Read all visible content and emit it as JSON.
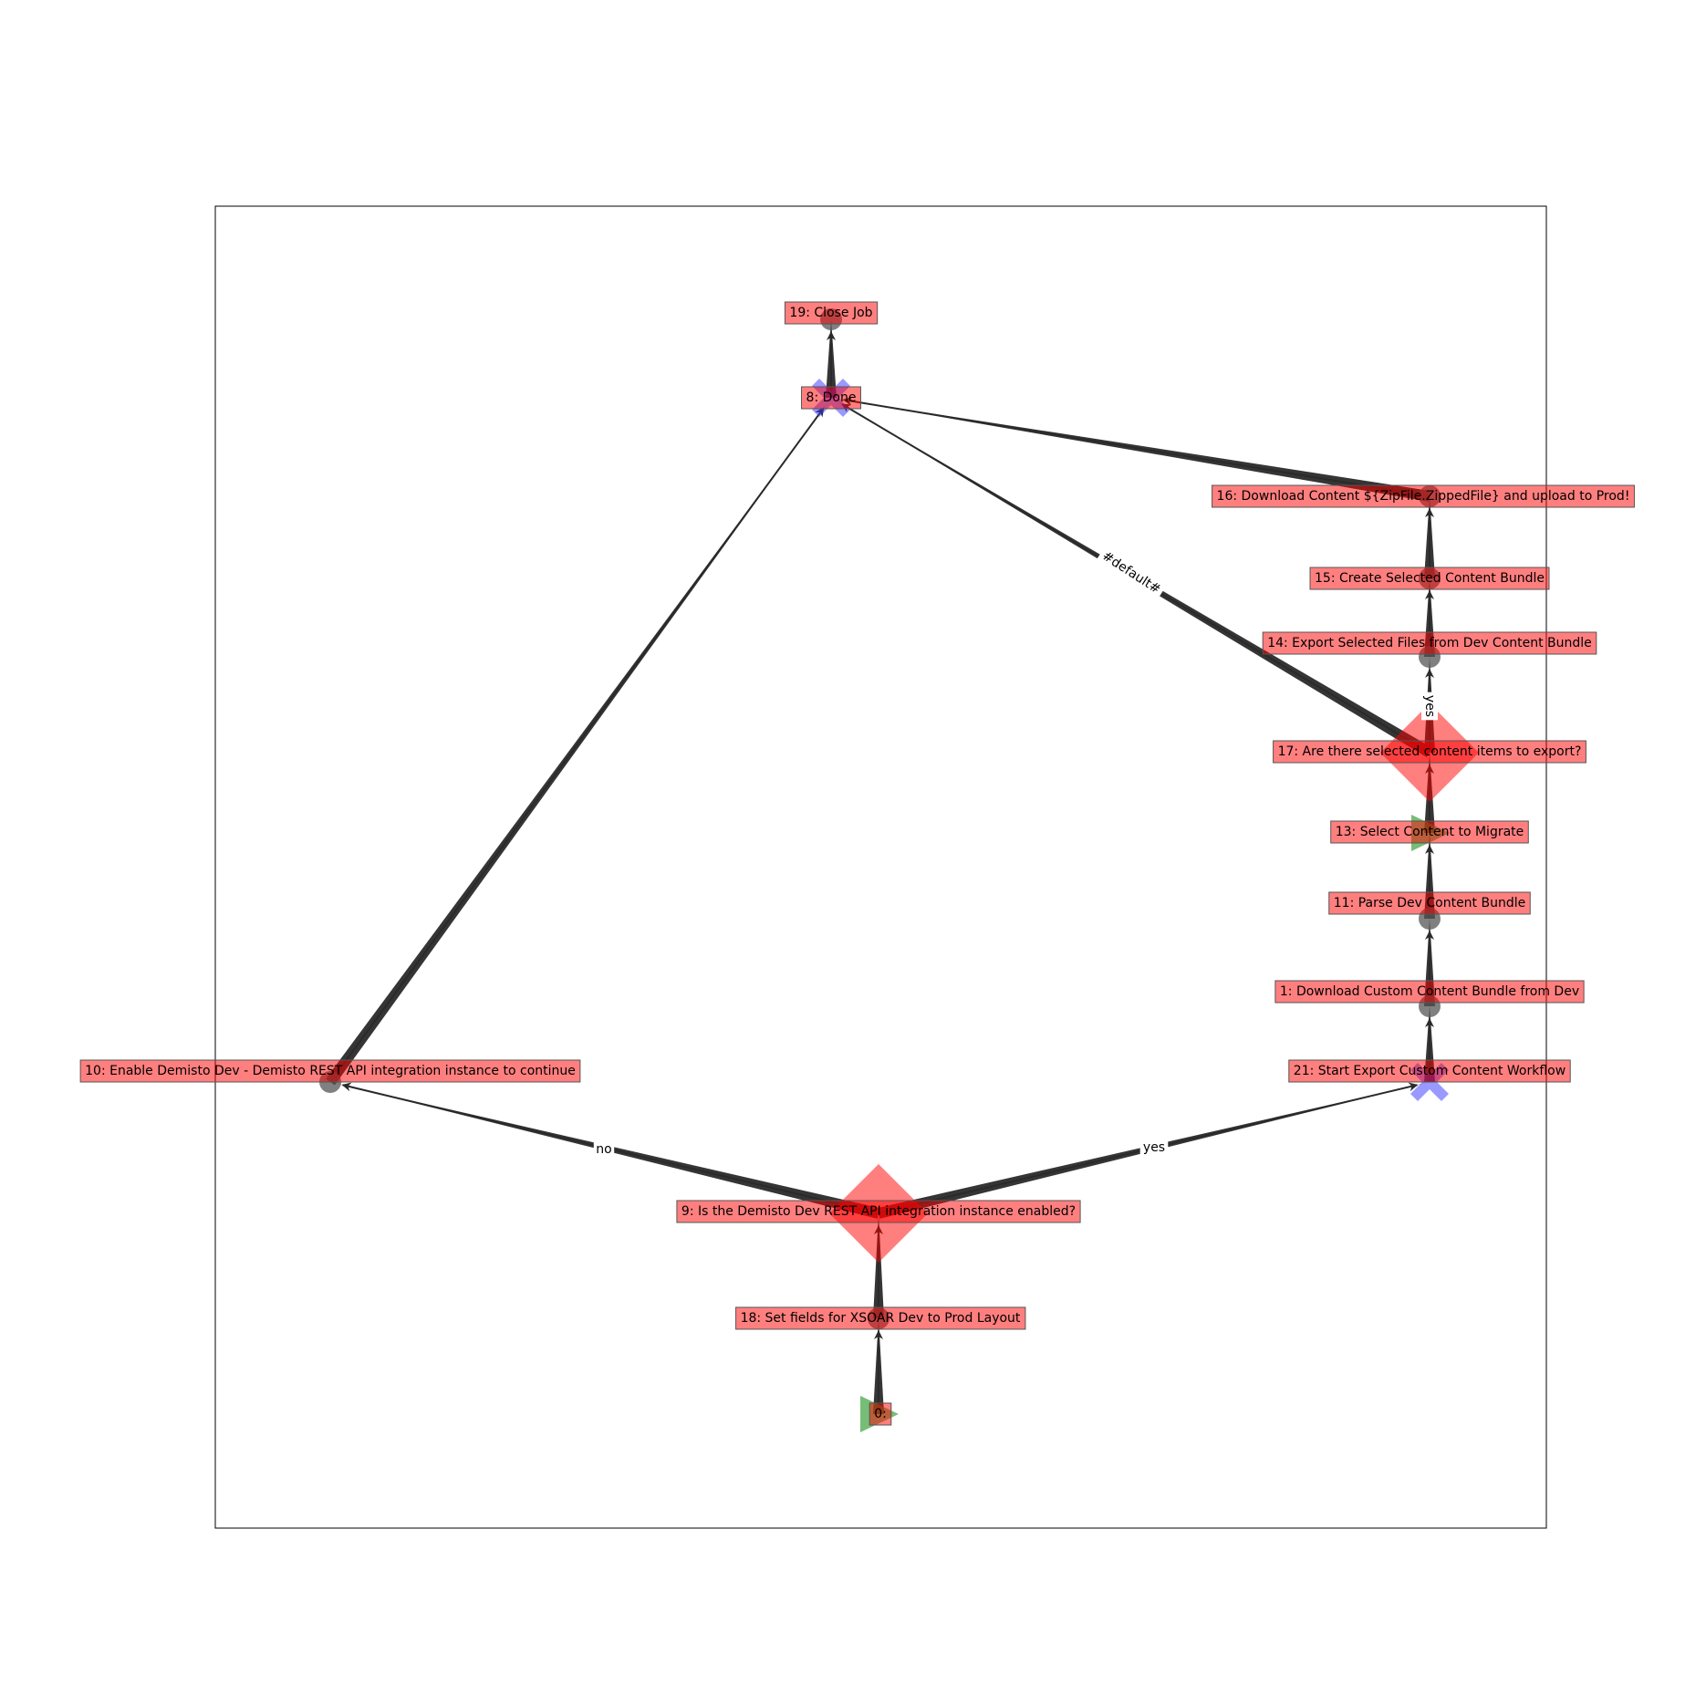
{
  "nodes": {
    "n0": {
      "label": "0:",
      "shape": "triangle"
    },
    "n18": {
      "label": "18: Set fields for XSOAR Dev to Prod Layout",
      "shape": "circle"
    },
    "n9": {
      "label": "9: Is the Demisto Dev REST API integration instance enabled?",
      "shape": "diamond"
    },
    "n10": {
      "label": "10: Enable Demisto Dev - Demisto REST API integration instance to continue",
      "shape": "circle"
    },
    "n21": {
      "label": "21: Start Export Custom Content Workflow",
      "shape": "x"
    },
    "n1": {
      "label": "1: Download Custom Content Bundle from Dev",
      "shape": "circle"
    },
    "n11": {
      "label": "11: Parse Dev Content Bundle",
      "shape": "circle"
    },
    "n13": {
      "label": "13: Select Content to Migrate",
      "shape": "triangle"
    },
    "n17": {
      "label": "17: Are there selected content items to export?",
      "shape": "diamond"
    },
    "n14": {
      "label": "14: Export Selected Files from Dev Content Bundle",
      "shape": "circle"
    },
    "n15": {
      "label": "15: Create Selected Content Bundle",
      "shape": "circle"
    },
    "n16": {
      "label": "16: Download Content ${ZipFile.ZippedFile} and upload to Prod!",
      "shape": "circle"
    },
    "n8": {
      "label": "8: Done",
      "shape": "x"
    },
    "n19": {
      "label": "19: Close Job",
      "shape": "circle"
    }
  },
  "edges": [
    {
      "from": "n0",
      "to": "n18",
      "label": ""
    },
    {
      "from": "n18",
      "to": "n9",
      "label": ""
    },
    {
      "from": "n9",
      "to": "n10",
      "label": "no"
    },
    {
      "from": "n9",
      "to": "n21",
      "label": "yes"
    },
    {
      "from": "n10",
      "to": "n8",
      "label": ""
    },
    {
      "from": "n21",
      "to": "n1",
      "label": ""
    },
    {
      "from": "n1",
      "to": "n11",
      "label": ""
    },
    {
      "from": "n11",
      "to": "n13",
      "label": ""
    },
    {
      "from": "n13",
      "to": "n17",
      "label": ""
    },
    {
      "from": "n17",
      "to": "n14",
      "label": "yes"
    },
    {
      "from": "n17",
      "to": "n8",
      "label": "#default#"
    },
    {
      "from": "n14",
      "to": "n15",
      "label": ""
    },
    {
      "from": "n15",
      "to": "n16",
      "label": ""
    },
    {
      "from": "n16",
      "to": "n8",
      "label": ""
    },
    {
      "from": "n8",
      "to": "n19",
      "label": ""
    }
  ],
  "colors": {
    "label_fill": "#ff0000",
    "label_border": "#555555",
    "edge": "#2a2a2a",
    "circle": "#555555",
    "diamond": "#ff0000",
    "triangle": "#2e9a2e",
    "x_marker": "#3333ff",
    "frame": "#000000"
  }
}
